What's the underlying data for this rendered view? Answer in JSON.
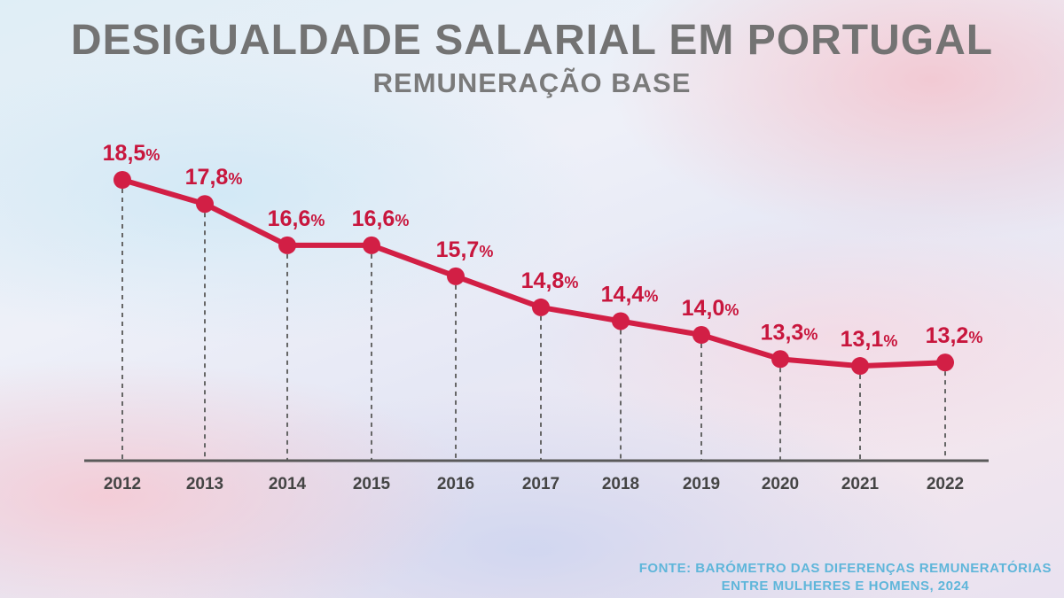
{
  "colors": {
    "line": "#d21f45",
    "label": "#c8163d",
    "axis": "#5a5a5a",
    "dash": "#666666",
    "title": "#737373",
    "source": "#5fb6da"
  },
  "chart_data": {
    "type": "line",
    "title": "DESIGUALDADE SALARIAL EM PORTUGAL",
    "subtitle": "REMUNERAÇÃO BASE",
    "xlabel": "",
    "ylabel": "",
    "categories": [
      "2012",
      "2013",
      "2014",
      "2015",
      "2016",
      "2017",
      "2018",
      "2019",
      "2020",
      "2021",
      "2022"
    ],
    "series": [
      {
        "values": [
          18.5,
          17.8,
          16.6,
          16.6,
          15.7,
          14.8,
          14.4,
          14.0,
          13.3,
          13.1,
          13.2
        ]
      }
    ],
    "data_labels": [
      "18,5",
      "17,8",
      "16,6",
      "16,6",
      "15,7",
      "14,8",
      "14,4",
      "14,0",
      "13,3",
      "13,1",
      "13,2"
    ],
    "label_unit": "%",
    "grid": false,
    "legend": "none"
  },
  "source": {
    "line1": "FONTE: BARÓMETRO DAS DIFERENÇAS REMUNERATÓRIAS",
    "line2": "ENTRE MULHERES E HOMENS, 2024"
  }
}
